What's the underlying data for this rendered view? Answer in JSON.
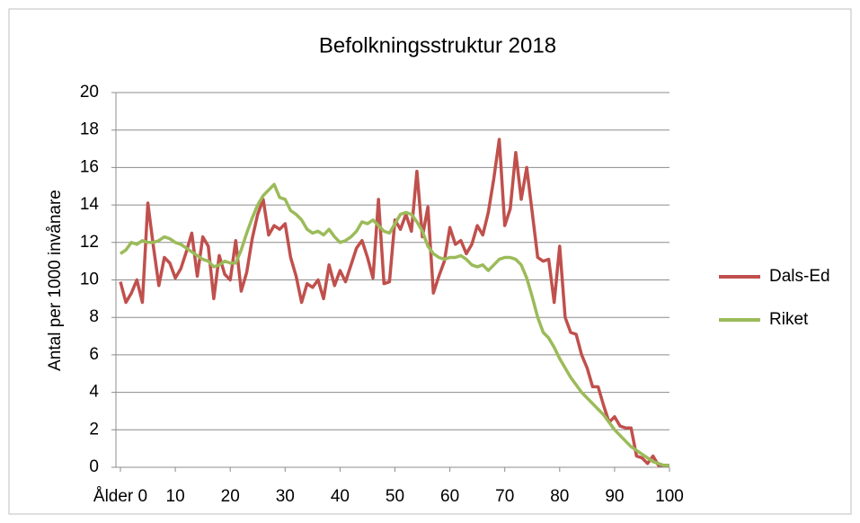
{
  "chart_data": {
    "type": "line",
    "title": "Befolkningsstruktur 2018",
    "ylabel": "Antal per 1000 invånare",
    "x": [
      0,
      1,
      2,
      3,
      4,
      5,
      6,
      7,
      8,
      9,
      10,
      11,
      12,
      13,
      14,
      15,
      16,
      17,
      18,
      19,
      20,
      21,
      22,
      23,
      24,
      25,
      26,
      27,
      28,
      29,
      30,
      31,
      32,
      33,
      34,
      35,
      36,
      37,
      38,
      39,
      40,
      41,
      42,
      43,
      44,
      45,
      46,
      47,
      48,
      49,
      50,
      51,
      52,
      53,
      54,
      55,
      56,
      57,
      58,
      59,
      60,
      61,
      62,
      63,
      64,
      65,
      66,
      67,
      68,
      69,
      70,
      71,
      72,
      73,
      74,
      75,
      76,
      77,
      78,
      79,
      80,
      81,
      82,
      83,
      84,
      85,
      86,
      87,
      88,
      89,
      90,
      91,
      92,
      93,
      94,
      95,
      96,
      97,
      98,
      99,
      100
    ],
    "xlim": [
      0,
      100
    ],
    "xticks": [
      {
        "value": 0,
        "label": "Ålder 0"
      },
      10,
      20,
      30,
      40,
      50,
      60,
      70,
      80,
      90,
      100
    ],
    "ylim": [
      0,
      20
    ],
    "yticks": [
      0,
      2,
      4,
      6,
      8,
      10,
      12,
      14,
      16,
      18,
      20
    ],
    "grid": true,
    "legend": "right",
    "series": [
      {
        "name": "Dals-Ed",
        "color": "#c0504d",
        "values": [
          9.9,
          8.8,
          9.3,
          10.0,
          8.8,
          14.1,
          11.8,
          9.7,
          11.2,
          10.9,
          10.1,
          10.6,
          11.5,
          12.5,
          10.2,
          12.3,
          11.8,
          9.0,
          11.3,
          10.3,
          10.0,
          12.1,
          9.4,
          10.4,
          12.2,
          13.5,
          14.3,
          12.4,
          12.9,
          12.7,
          13.0,
          11.2,
          10.2,
          8.8,
          9.8,
          9.6,
          10.0,
          9.0,
          10.8,
          9.7,
          10.5,
          9.9,
          10.8,
          11.7,
          12.1,
          11.2,
          10.1,
          14.3,
          9.8,
          9.9,
          13.2,
          12.7,
          13.5,
          12.6,
          15.8,
          12.3,
          13.9,
          9.3,
          10.2,
          11.0,
          12.8,
          11.9,
          12.1,
          11.4,
          11.9,
          12.9,
          12.4,
          13.6,
          15.4,
          17.5,
          12.9,
          13.8,
          16.8,
          14.3,
          16.0,
          13.6,
          11.2,
          11.0,
          11.1,
          8.8,
          11.8,
          8.0,
          7.2,
          7.1,
          6.0,
          5.3,
          4.3,
          4.3,
          3.3,
          2.4,
          2.7,
          2.2,
          2.1,
          2.1,
          0.6,
          0.5,
          0.2,
          0.6,
          0.1,
          0.1,
          0.1
        ]
      },
      {
        "name": "Riket",
        "color": "#9bbb59",
        "values": [
          11.4,
          11.6,
          12.0,
          11.9,
          12.1,
          12.0,
          12.0,
          12.1,
          12.3,
          12.2,
          12.0,
          11.9,
          11.7,
          11.5,
          11.3,
          11.1,
          11.0,
          10.7,
          10.8,
          11.0,
          10.9,
          10.9,
          11.6,
          12.5,
          13.3,
          14.0,
          14.5,
          14.8,
          15.1,
          14.4,
          14.3,
          13.7,
          13.5,
          13.2,
          12.7,
          12.5,
          12.6,
          12.4,
          12.7,
          12.3,
          12.0,
          12.1,
          12.3,
          12.6,
          13.1,
          13.0,
          13.2,
          12.9,
          12.6,
          12.5,
          13.0,
          13.5,
          13.6,
          13.5,
          13.1,
          12.6,
          11.8,
          11.4,
          11.2,
          11.1,
          11.2,
          11.2,
          11.3,
          11.1,
          10.8,
          10.7,
          10.8,
          10.5,
          10.8,
          11.1,
          11.2,
          11.2,
          11.1,
          10.8,
          10.1,
          9.1,
          8.0,
          7.2,
          6.9,
          6.4,
          5.8,
          5.3,
          4.8,
          4.4,
          4.0,
          3.7,
          3.4,
          3.1,
          2.8,
          2.4,
          2.0,
          1.7,
          1.4,
          1.1,
          0.9,
          0.7,
          0.5,
          0.3,
          0.2,
          0.1,
          0.1
        ]
      }
    ]
  }
}
